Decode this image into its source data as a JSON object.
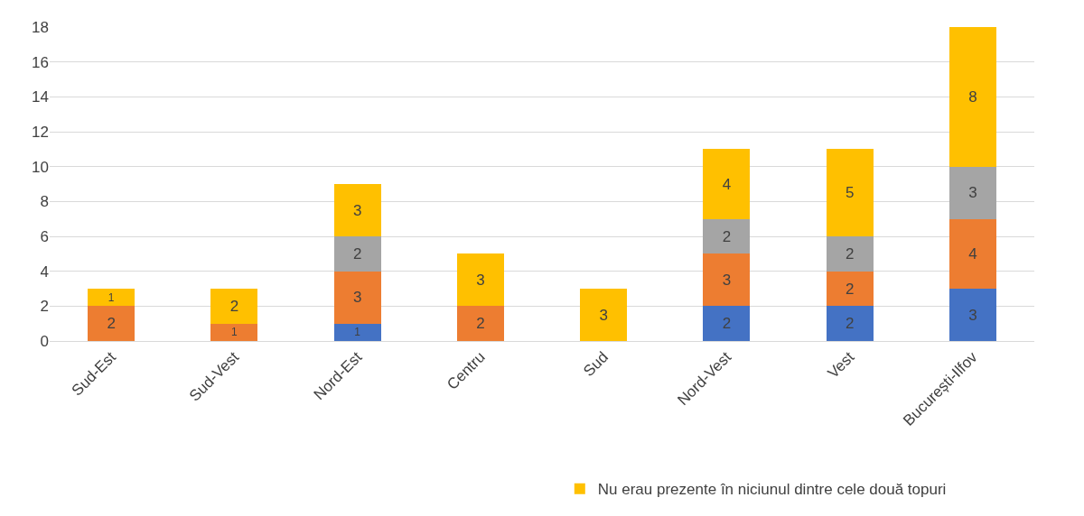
{
  "chart_data": {
    "type": "bar",
    "stacked": true,
    "data_labels": true,
    "categories": [
      "Sud-Est",
      "Sud-Vest",
      "Nord-Est",
      "Centru",
      "Sud",
      "Nord-Vest",
      "Vest",
      "București-Ilfov"
    ],
    "series": [
      {
        "color": "#4472c4",
        "values": [
          null,
          null,
          1,
          null,
          null,
          2,
          2,
          3
        ]
      },
      {
        "color": "#ed7d31",
        "values": [
          2,
          1,
          3,
          2,
          null,
          3,
          2,
          4
        ]
      },
      {
        "color": "#a5a5a5",
        "values": [
          null,
          null,
          2,
          null,
          null,
          2,
          2,
          3
        ]
      },
      {
        "name": "Nu erau prezente în niciunul dintre cele două topuri",
        "color": "#ffc000",
        "values": [
          1,
          2,
          3,
          3,
          3,
          4,
          5,
          8
        ]
      }
    ],
    "ylim": [
      0,
      18
    ],
    "yticks": [
      0,
      2,
      4,
      6,
      8,
      10,
      12,
      14,
      16,
      18
    ],
    "grid": "y",
    "legend": "bottom"
  }
}
